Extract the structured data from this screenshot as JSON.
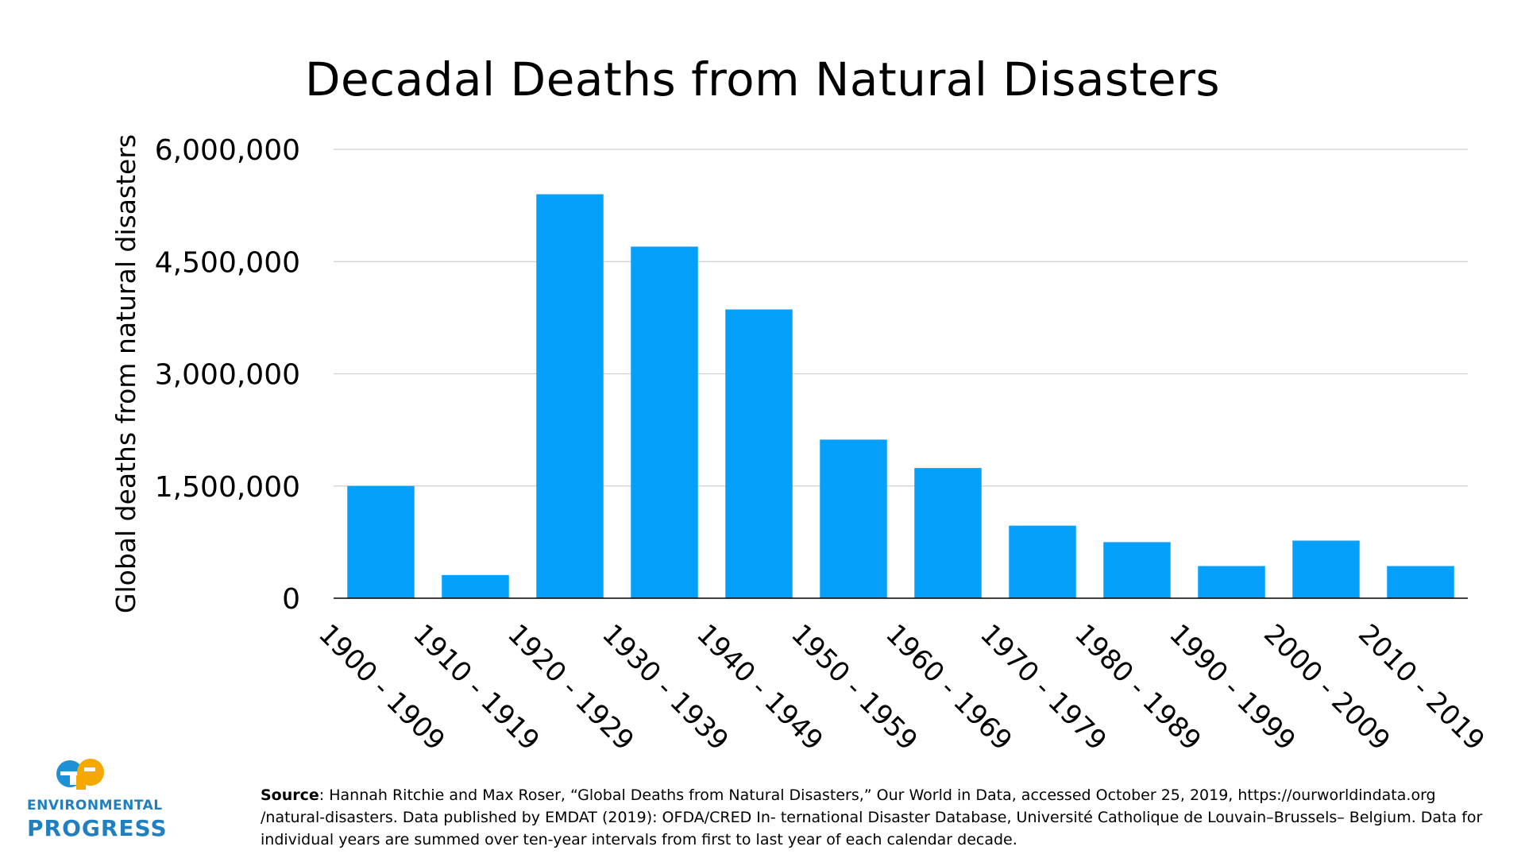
{
  "chart_data": {
    "type": "bar",
    "title": "Decadal Deaths from Natural Disasters",
    "ylabel": "Global deaths from natural disasters",
    "xlabel": "",
    "ylim": [
      0,
      6000000
    ],
    "yticks": [
      0,
      1500000,
      3000000,
      4500000,
      6000000
    ],
    "ytick_labels": [
      "0",
      "1,500,000",
      "3,000,000",
      "4,500,000",
      "6,000,000"
    ],
    "grid": true,
    "bar_color": "#05A0FA",
    "categories": [
      "1900 - 1909",
      "1910 - 1919",
      "1920 - 1929",
      "1930 - 1939",
      "1940 - 1949",
      "1950 - 1959",
      "1960 - 1969",
      "1970 - 1979",
      "1980 - 1989",
      "1990 - 1999",
      "2000 - 2009",
      "2010 - 2019"
    ],
    "values": [
      1500000,
      310000,
      5400000,
      4700000,
      3860000,
      2120000,
      1740000,
      970000,
      750000,
      430000,
      770000,
      430000
    ]
  },
  "source": {
    "label": "Source",
    "text": ": Hannah Ritchie and Max Roser, “Global Deaths from Natural Disasters,” Our World in Data, accessed October 25, 2019, https://ourworldindata.org /natural-disasters. Data published by EMDAT (2019): OFDA/CRED In- ternational Disaster Database, Université Catholique de Louvain–Brussels– Belgium. Data for individual years are summed over ten-year intervals from first to last year of each calendar decade."
  },
  "logo": {
    "mark": "ep",
    "line1": "ENVIRONMENTAL",
    "line2": "PROGRESS",
    "color": "#1f7fbf",
    "accent": "#f5a800"
  }
}
